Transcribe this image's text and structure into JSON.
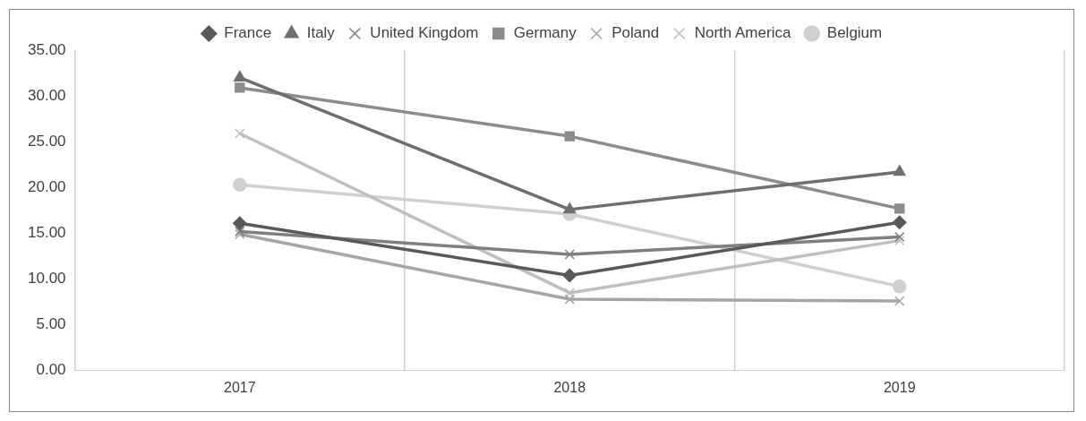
{
  "chart_data": {
    "type": "line",
    "categories": [
      "2017",
      "2018",
      "2019"
    ],
    "series": [
      {
        "name": "France",
        "color": "#595959",
        "marker": "diamond",
        "values": [
          16.1,
          10.4,
          16.2
        ]
      },
      {
        "name": "Italy",
        "color": "#6f6f6f",
        "marker": "triangle",
        "values": [
          32.0,
          17.6,
          21.7
        ]
      },
      {
        "name": "United Kingdom",
        "color": "#7f7f7f",
        "marker": "cross",
        "values": [
          15.2,
          12.7,
          14.6
        ]
      },
      {
        "name": "Germany",
        "color": "#8c8c8c",
        "marker": "square",
        "values": [
          30.9,
          25.6,
          17.7
        ]
      },
      {
        "name": "Poland",
        "color": "#a5a5a5",
        "marker": "cross",
        "values": [
          14.9,
          7.8,
          7.6
        ]
      },
      {
        "name": "North America",
        "color": "#bfbfbf",
        "marker": "cross",
        "values": [
          25.9,
          8.5,
          14.2
        ]
      },
      {
        "name": "Belgium",
        "color": "#d0d0d0",
        "marker": "circle",
        "values": [
          20.3,
          17.1,
          9.2
        ]
      }
    ],
    "ylim": [
      0,
      35
    ],
    "yticks": [
      {
        "value": 0,
        "label": "0.00"
      },
      {
        "value": 5,
        "label": "5.00"
      },
      {
        "value": 10,
        "label": "10.00"
      },
      {
        "value": 15,
        "label": "15.00"
      },
      {
        "value": 20,
        "label": "20.00"
      },
      {
        "value": 25,
        "label": "25.00"
      },
      {
        "value": 30,
        "label": "30.00"
      },
      {
        "value": 35,
        "label": "35.00"
      }
    ],
    "grid": "x",
    "legend": "top",
    "line_style": "solid"
  }
}
